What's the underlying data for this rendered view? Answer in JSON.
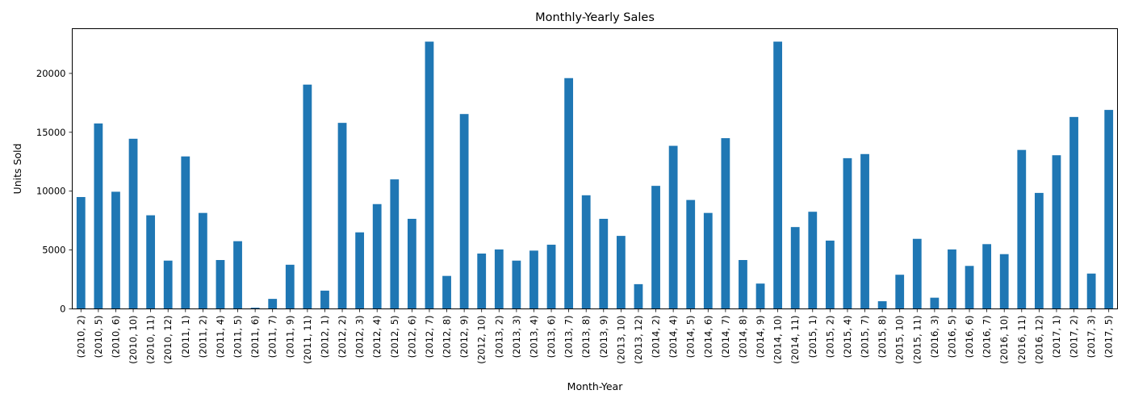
{
  "chart_data": {
    "type": "bar",
    "title": "Monthly-Yearly Sales",
    "xlabel": "Month-Year",
    "ylabel": "Units Sold",
    "ylim": [
      0,
      23800
    ],
    "yticks": [
      0,
      5000,
      10000,
      15000,
      20000
    ],
    "grid": false,
    "legend": "none",
    "bar_color": "#1f77b4",
    "categories": [
      "(2010, 2)",
      "(2010, 5)",
      "(2010, 6)",
      "(2010, 10)",
      "(2010, 11)",
      "(2010, 12)",
      "(2011, 1)",
      "(2011, 2)",
      "(2011, 4)",
      "(2011, 5)",
      "(2011, 6)",
      "(2011, 7)",
      "(2011, 9)",
      "(2011, 11)",
      "(2012, 1)",
      "(2012, 2)",
      "(2012, 3)",
      "(2012, 4)",
      "(2012, 5)",
      "(2012, 6)",
      "(2012, 7)",
      "(2012, 8)",
      "(2012, 9)",
      "(2012, 10)",
      "(2013, 2)",
      "(2013, 3)",
      "(2013, 4)",
      "(2013, 6)",
      "(2013, 7)",
      "(2013, 8)",
      "(2013, 9)",
      "(2013, 10)",
      "(2013, 12)",
      "(2014, 2)",
      "(2014, 4)",
      "(2014, 5)",
      "(2014, 6)",
      "(2014, 7)",
      "(2014, 8)",
      "(2014, 9)",
      "(2014, 10)",
      "(2014, 11)",
      "(2015, 1)",
      "(2015, 2)",
      "(2015, 4)",
      "(2015, 7)",
      "(2015, 8)",
      "(2015, 10)",
      "(2015, 11)",
      "(2016, 3)",
      "(2016, 5)",
      "(2016, 6)",
      "(2016, 7)",
      "(2016, 10)",
      "(2016, 11)",
      "(2016, 12)",
      "(2017, 1)",
      "(2017, 2)",
      "(2017, 3)",
      "(2017, 5)"
    ],
    "values": [
      9500,
      15750,
      9950,
      14450,
      7950,
      4100,
      12950,
      8150,
      4150,
      5750,
      100,
      850,
      3750,
      19050,
      1550,
      15800,
      6500,
      8900,
      11000,
      7650,
      22700,
      2800,
      16550,
      4700,
      5050,
      4100,
      4950,
      5450,
      19600,
      9650,
      7650,
      6200,
      2100,
      10450,
      13850,
      9250,
      8150,
      14500,
      4150,
      2150,
      22700,
      6950,
      8250,
      5800,
      12800,
      13150,
      650,
      2900,
      5950,
      950,
      5050,
      3650,
      5500,
      4650,
      13500,
      9850,
      13050,
      16300,
      3000,
      16900
    ]
  }
}
